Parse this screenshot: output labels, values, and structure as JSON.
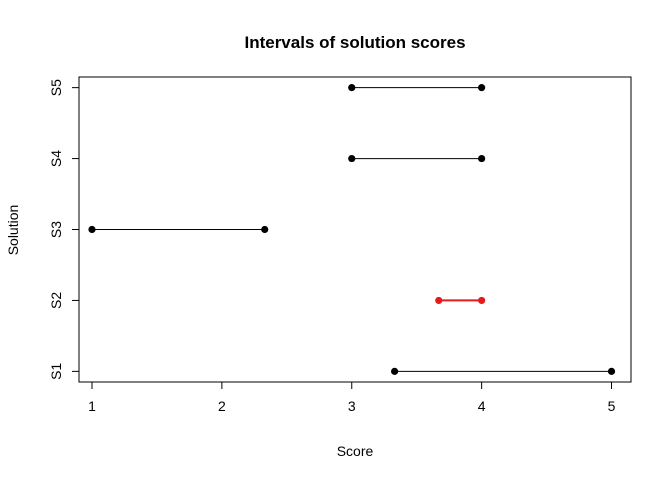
{
  "chart_data": {
    "type": "interval",
    "title": "Intervals of solution scores",
    "xlabel": "Score",
    "ylabel": "Solution",
    "xlim": [
      0.9,
      5.15
    ],
    "ylim": [
      0.85,
      5.15
    ],
    "xticks": [
      1,
      2,
      3,
      4,
      5
    ],
    "categories": [
      "S1",
      "S2",
      "S3",
      "S4",
      "S5"
    ],
    "intervals": [
      {
        "category": "S1",
        "low": 3.33,
        "high": 5.0,
        "color": "#000000",
        "highlight": false
      },
      {
        "category": "S2",
        "low": 3.67,
        "high": 4.0,
        "color": "#e41a1c",
        "highlight": true
      },
      {
        "category": "S3",
        "low": 1.0,
        "high": 2.33,
        "color": "#000000",
        "highlight": false
      },
      {
        "category": "S4",
        "low": 3.0,
        "high": 4.0,
        "color": "#000000",
        "highlight": false
      },
      {
        "category": "S5",
        "low": 3.0,
        "high": 4.0,
        "color": "#000000",
        "highlight": false
      }
    ],
    "grid": false,
    "legend": "none"
  }
}
